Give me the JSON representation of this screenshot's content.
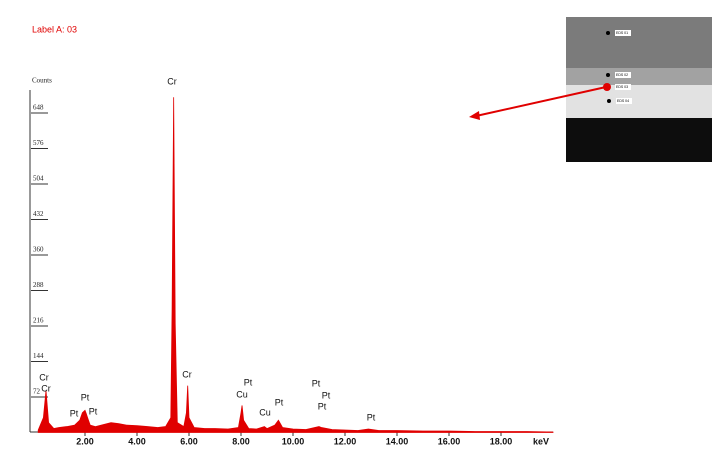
{
  "chart_data": {
    "type": "spectrum",
    "title": "Label A: 03",
    "y_label": "Counts",
    "x_label": "keV",
    "color": "#e00000",
    "xlim": [
      0,
      20
    ],
    "ylim": [
      0,
      720
    ],
    "yticks": [
      72,
      144,
      216,
      288,
      360,
      432,
      504,
      576,
      648
    ],
    "xticks": [
      {
        "value": 2,
        "label": "2.00"
      },
      {
        "value": 4,
        "label": "4.00"
      },
      {
        "value": 6,
        "label": "6.00"
      },
      {
        "value": 8,
        "label": "8.00"
      },
      {
        "value": 10,
        "label": "10.00"
      },
      {
        "value": 12,
        "label": "12.00"
      },
      {
        "value": 14,
        "label": "14.00"
      },
      {
        "value": 16,
        "label": "16.00"
      },
      {
        "value": 18,
        "label": "18.00"
      }
    ],
    "x": [
      0.2,
      0.4,
      0.5,
      0.6,
      0.8,
      1.0,
      1.3,
      1.6,
      1.8,
      1.9,
      2.0,
      2.05,
      2.1,
      2.2,
      2.4,
      2.7,
      3.0,
      3.3,
      3.6,
      4.0,
      4.4,
      4.8,
      5.1,
      5.3,
      5.35,
      5.41,
      5.47,
      5.55,
      5.8,
      5.9,
      5.95,
      6.0,
      6.2,
      6.6,
      7.0,
      7.5,
      7.9,
      8.0,
      8.04,
      8.1,
      8.3,
      8.6,
      8.9,
      9.0,
      9.3,
      9.44,
      9.6,
      10.0,
      10.5,
      11.0,
      11.1,
      11.5,
      12.0,
      12.5,
      12.9,
      13.3,
      14,
      15,
      16,
      17,
      18,
      19,
      20
    ],
    "values": [
      5,
      30,
      85,
      20,
      8,
      10,
      12,
      15,
      25,
      40,
      45,
      38,
      30,
      15,
      12,
      16,
      20,
      18,
      15,
      14,
      12,
      10,
      12,
      30,
      250,
      680,
      220,
      20,
      12,
      40,
      95,
      30,
      10,
      8,
      8,
      7,
      10,
      40,
      55,
      25,
      8,
      7,
      12,
      8,
      15,
      25,
      10,
      7,
      6,
      12,
      10,
      6,
      5,
      4,
      7,
      4,
      4,
      3,
      3,
      2,
      2,
      2,
      1
    ],
    "annotations": [
      "Cr",
      "Cr",
      "Cr",
      "Pt",
      "Pt",
      "Pt",
      "Cr",
      "Cu",
      "Pt",
      "Cu",
      "Pt",
      "Pt",
      "Pt",
      "Pt",
      "Pt"
    ]
  },
  "inset": {
    "labels": [
      "EDS 01",
      "EDS 02",
      "EDS 03",
      "EDS 04"
    ]
  }
}
